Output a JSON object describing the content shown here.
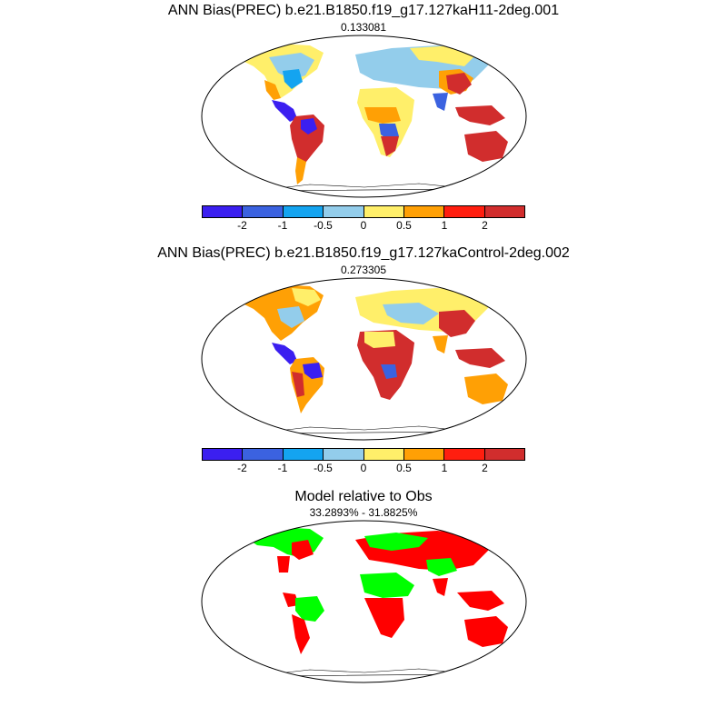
{
  "panels": [
    {
      "title": "ANN Bias(PREC) b.e21.B1850.f19_g17.127kaH11-2deg.001",
      "subtitle": "0.133081",
      "legend": {
        "colors": [
          "#3b1ff0",
          "#3b62e0",
          "#14a4f0",
          "#93cdeb",
          "#ffef6a",
          "#ffa005",
          "#ff1e0f",
          "#d12d2d"
        ],
        "labels": [
          "-2",
          "-1",
          "-0.5",
          "0",
          "0.5",
          "1",
          "2"
        ]
      }
    },
    {
      "title": "ANN Bias(PREC) b.e21.B1850.f19_g17.127kaControl-2deg.002",
      "subtitle": "0.273305",
      "legend": {
        "colors": [
          "#3b1ff0",
          "#3b62e0",
          "#14a4f0",
          "#93cdeb",
          "#ffef6a",
          "#ffa005",
          "#ff1e0f",
          "#d12d2d"
        ],
        "labels": [
          "-2",
          "-1",
          "-0.5",
          "0",
          "0.5",
          "1",
          "2"
        ]
      }
    },
    {
      "title": "Model relative to Obs",
      "subtitle": "33.2893% - 31.8825%"
    }
  ]
}
